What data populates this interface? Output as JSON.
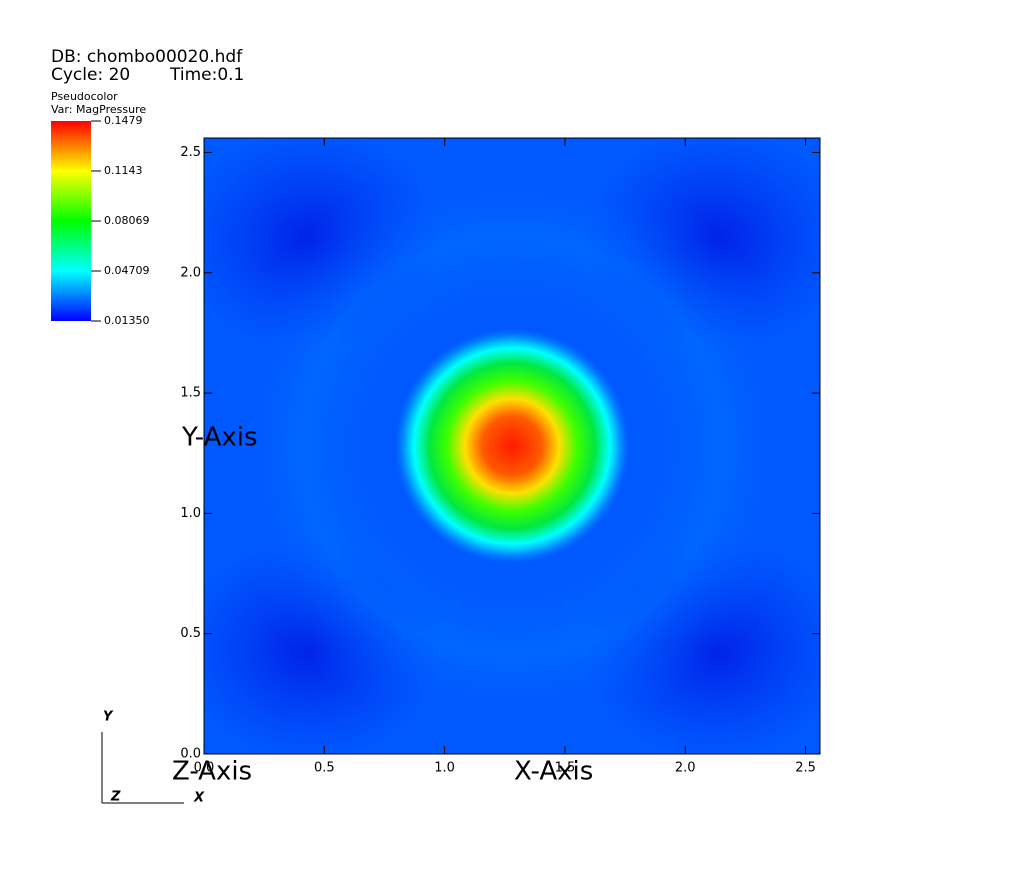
{
  "chart_data": {
    "type": "pseudocolor",
    "db": "DB: chombo00020.hdf",
    "cycle": "Cycle: 20",
    "time": "Time:0.1",
    "plot_name": "Pseudocolor",
    "variable": "Var: MagPressure",
    "xlabel": "X-Axis",
    "ylabel": "Y-Axis",
    "zlabel": "Z-Axis",
    "xlim": [
      0,
      2.56
    ],
    "ylim": [
      0,
      2.56
    ],
    "xticks": [
      {
        "value": 0,
        "label": "0.0"
      },
      0.5,
      {
        "value": 1,
        "label": "1.0"
      },
      1.5,
      {
        "value": 2,
        "label": "2.0"
      },
      2.5
    ],
    "yticks": [
      {
        "value": 0,
        "label": "0.0"
      },
      0.5,
      {
        "value": 1,
        "label": "1.0"
      },
      1.5,
      {
        "value": 2,
        "label": "2.0"
      },
      2.5
    ],
    "colorbar": {
      "lim": [
        0.0135,
        0.1479
      ],
      "ticks": [
        {
          "value": 0.0135,
          "label": "0.01350"
        },
        0.04709,
        0.08069,
        0.1143,
        0.1479
      ]
    },
    "triad": {
      "x": "X",
      "y": "Y",
      "z": "Z"
    }
  }
}
